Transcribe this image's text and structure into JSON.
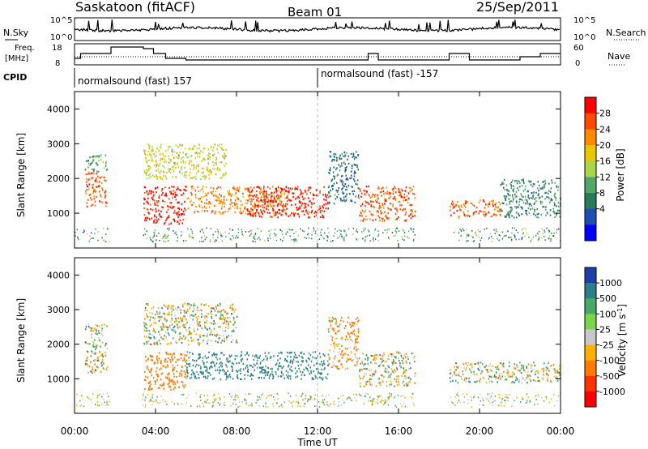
{
  "header": {
    "station": "Saskatoon (fitACF)",
    "beam": "Beam 01",
    "date": "25/Sep/2011"
  },
  "summary": {
    "nsky_label": "N.Sky",
    "nsky_ticks": [
      "10^5",
      "10^0"
    ],
    "nsearch_label": "N.Search",
    "freq_label": "Freq.",
    "freq_unit": "[MHz]",
    "freq_ticks": [
      "18",
      "8"
    ],
    "nave_label": "Nave",
    "nave_ticks": [
      "60",
      "0"
    ],
    "cpid_label": "CPID",
    "cpid_segments": [
      {
        "label": "normalsound (fast) 157",
        "start_hour": 0
      },
      {
        "label": "normalsound (fast) -157",
        "start_hour": 12
      }
    ]
  },
  "axes": {
    "ylabel": "Slant Range [km]",
    "xlabel": "Time UT",
    "y_ticks": [
      "1000",
      "2000",
      "3000",
      "4000"
    ],
    "x_ticks": [
      "00:00",
      "04:00",
      "08:00",
      "12:00",
      "16:00",
      "20:00",
      "00:00"
    ]
  },
  "colorbars": {
    "power": {
      "label": "Power [dB]",
      "ticks": [
        "28",
        "24",
        "20",
        "16",
        "12",
        "8",
        "4"
      ],
      "colors": [
        "#ff0000",
        "#ff4a00",
        "#ff8a00",
        "#e8c800",
        "#a8d84a",
        "#4fa86a",
        "#2c7a5a",
        "#1f4fb0",
        "#0000ff"
      ]
    },
    "velocity": {
      "label": "Velocity [m s",
      "label_sup": "-1",
      "label_end": "]",
      "ticks": [
        "1000",
        "500",
        "100",
        "25",
        "-25",
        "-100",
        "-500",
        "-1000"
      ],
      "colors": [
        "#1c3fa8",
        "#2e7d8c",
        "#4aa86a",
        "#77d64a",
        "#c8c8c8",
        "#ffb000",
        "#ff7a00",
        "#ff3300",
        "#ff0000"
      ]
    }
  },
  "chart_data": [
    {
      "type": "heatmap",
      "name": "power",
      "x_range_hours": [
        0,
        24
      ],
      "ylim": [
        0,
        4500
      ],
      "units": "dB",
      "regions": [
        {
          "t0": 0.5,
          "t1": 1.6,
          "r0": 1200,
          "r1": 2200,
          "value": 24
        },
        {
          "t0": 0.5,
          "t1": 1.6,
          "r0": 2200,
          "r1": 2700,
          "value": 10
        },
        {
          "t0": 3.4,
          "t1": 5.5,
          "r0": 700,
          "r1": 1800,
          "value": 28
        },
        {
          "t0": 3.4,
          "t1": 7.5,
          "r0": 2000,
          "r1": 3000,
          "value": 16
        },
        {
          "t0": 5.5,
          "t1": 10.5,
          "r0": 1000,
          "r1": 1800,
          "value": 22
        },
        {
          "t0": 8.5,
          "t1": 12.5,
          "r0": 900,
          "r1": 1800,
          "value": 28
        },
        {
          "t0": 12.5,
          "t1": 14.0,
          "r0": 1300,
          "r1": 2800,
          "value": 6
        },
        {
          "t0": 14.0,
          "t1": 16.8,
          "r0": 800,
          "r1": 1800,
          "value": 24
        },
        {
          "t0": 18.5,
          "t1": 21.0,
          "r0": 900,
          "r1": 1400,
          "value": 24
        },
        {
          "t0": 21.0,
          "t1": 24.0,
          "r0": 900,
          "r1": 2000,
          "value": 8
        }
      ]
    },
    {
      "type": "heatmap",
      "name": "velocity",
      "x_range_hours": [
        0,
        24
      ],
      "ylim": [
        0,
        4500
      ],
      "units": "m s-1",
      "regions": [
        {
          "t0": 0.5,
          "t1": 1.6,
          "r0": 1200,
          "r1": 2600,
          "value": 0
        },
        {
          "t0": 3.4,
          "t1": 5.5,
          "r0": 700,
          "r1": 1800,
          "value": -300
        },
        {
          "t0": 3.4,
          "t1": 8.0,
          "r0": 2000,
          "r1": 3200,
          "value": 0
        },
        {
          "t0": 5.5,
          "t1": 12.5,
          "r0": 1000,
          "r1": 1800,
          "value": 200
        },
        {
          "t0": 12.5,
          "t1": 14.0,
          "r0": 1300,
          "r1": 2800,
          "value": -100
        },
        {
          "t0": 14.0,
          "t1": 16.8,
          "r0": 800,
          "r1": 1800,
          "value": 0
        },
        {
          "t0": 18.5,
          "t1": 24.0,
          "r0": 900,
          "r1": 1500,
          "value": 0
        }
      ]
    }
  ]
}
